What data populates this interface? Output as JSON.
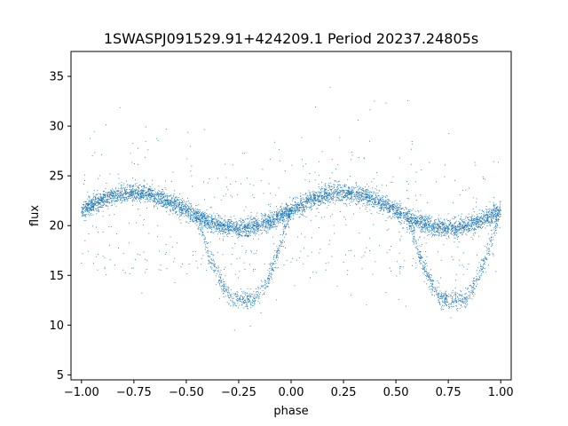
{
  "chart_data": {
    "type": "scatter",
    "title": "1SWASPJ091529.91+424209.1 Period 20237.24805s",
    "xlabel": "phase",
    "ylabel": "flux",
    "xlim": [
      -1.05,
      1.05
    ],
    "ylim": [
      4.5,
      37.5
    ],
    "x_ticks": [
      -1.0,
      -0.75,
      -0.5,
      -0.25,
      0.0,
      0.25,
      0.5,
      0.75,
      1.0
    ],
    "x_tick_labels": [
      "−1.00",
      "−0.75",
      "−0.50",
      "−0.25",
      "0.00",
      "0.25",
      "0.50",
      "0.75",
      "1.00"
    ],
    "y_ticks": [
      5,
      10,
      15,
      20,
      25,
      30,
      35
    ],
    "y_tick_labels": [
      "5",
      "10",
      "15",
      "20",
      "25",
      "30",
      "35"
    ],
    "grid": false,
    "series": [
      {
        "color": "#1f77b4",
        "marker_size": 0.5,
        "description_points": [
          {
            "phase": -1.0,
            "flux": 21.3
          },
          {
            "phase": -0.75,
            "flux": 23.3
          },
          {
            "phase": -0.5,
            "flux": 21.3
          },
          {
            "phase": -0.25,
            "flux": 19.6
          },
          {
            "phase": -0.22,
            "flux": 12.6
          },
          {
            "phase": 0.0,
            "flux": 21.3
          },
          {
            "phase": 0.25,
            "flux": 23.3
          },
          {
            "phase": 0.5,
            "flux": 21.3
          },
          {
            "phase": 0.75,
            "flux": 19.6
          },
          {
            "phase": 0.78,
            "flux": 12.6
          },
          {
            "phase": 1.0,
            "flux": 21.3
          }
        ]
      }
    ]
  }
}
